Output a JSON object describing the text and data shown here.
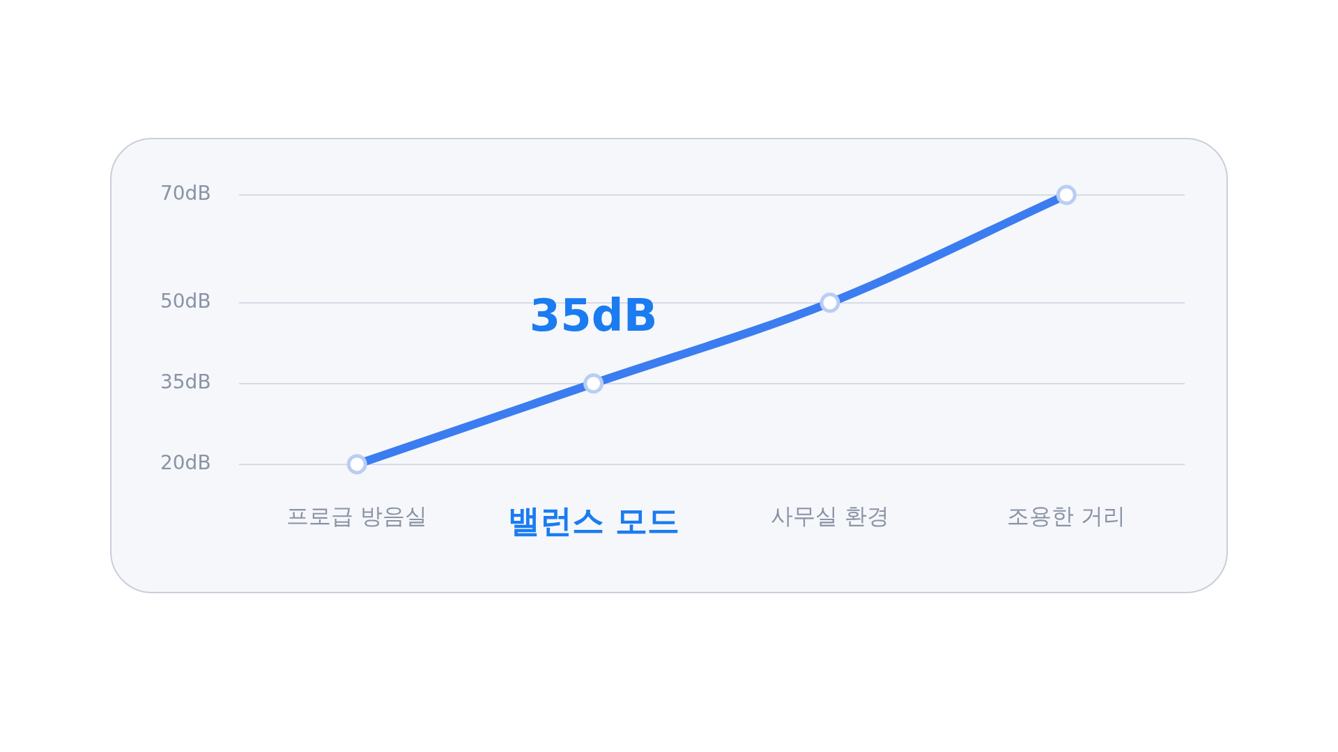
{
  "chart_data": {
    "type": "line",
    "categories": [
      "프로급 방음실",
      "밸런스 모드",
      "사무실 환경",
      "조용한 거리"
    ],
    "series": [
      {
        "color": "#3b7cf0",
        "values": [
          20,
          35,
          50,
          70
        ]
      }
    ],
    "ylim": [
      20,
      70
    ],
    "yticks": [
      {
        "value": 20,
        "label": "20dB"
      },
      {
        "value": 35,
        "label": "35dB"
      },
      {
        "value": 50,
        "label": "50dB"
      },
      {
        "value": 70,
        "label": "70dB"
      }
    ],
    "grid": "y",
    "marker": "circle",
    "line_style": "solid",
    "legend": false,
    "annotations": [
      {
        "text": "35dB",
        "x": "밸런스 모드",
        "y": 35
      }
    ]
  }
}
